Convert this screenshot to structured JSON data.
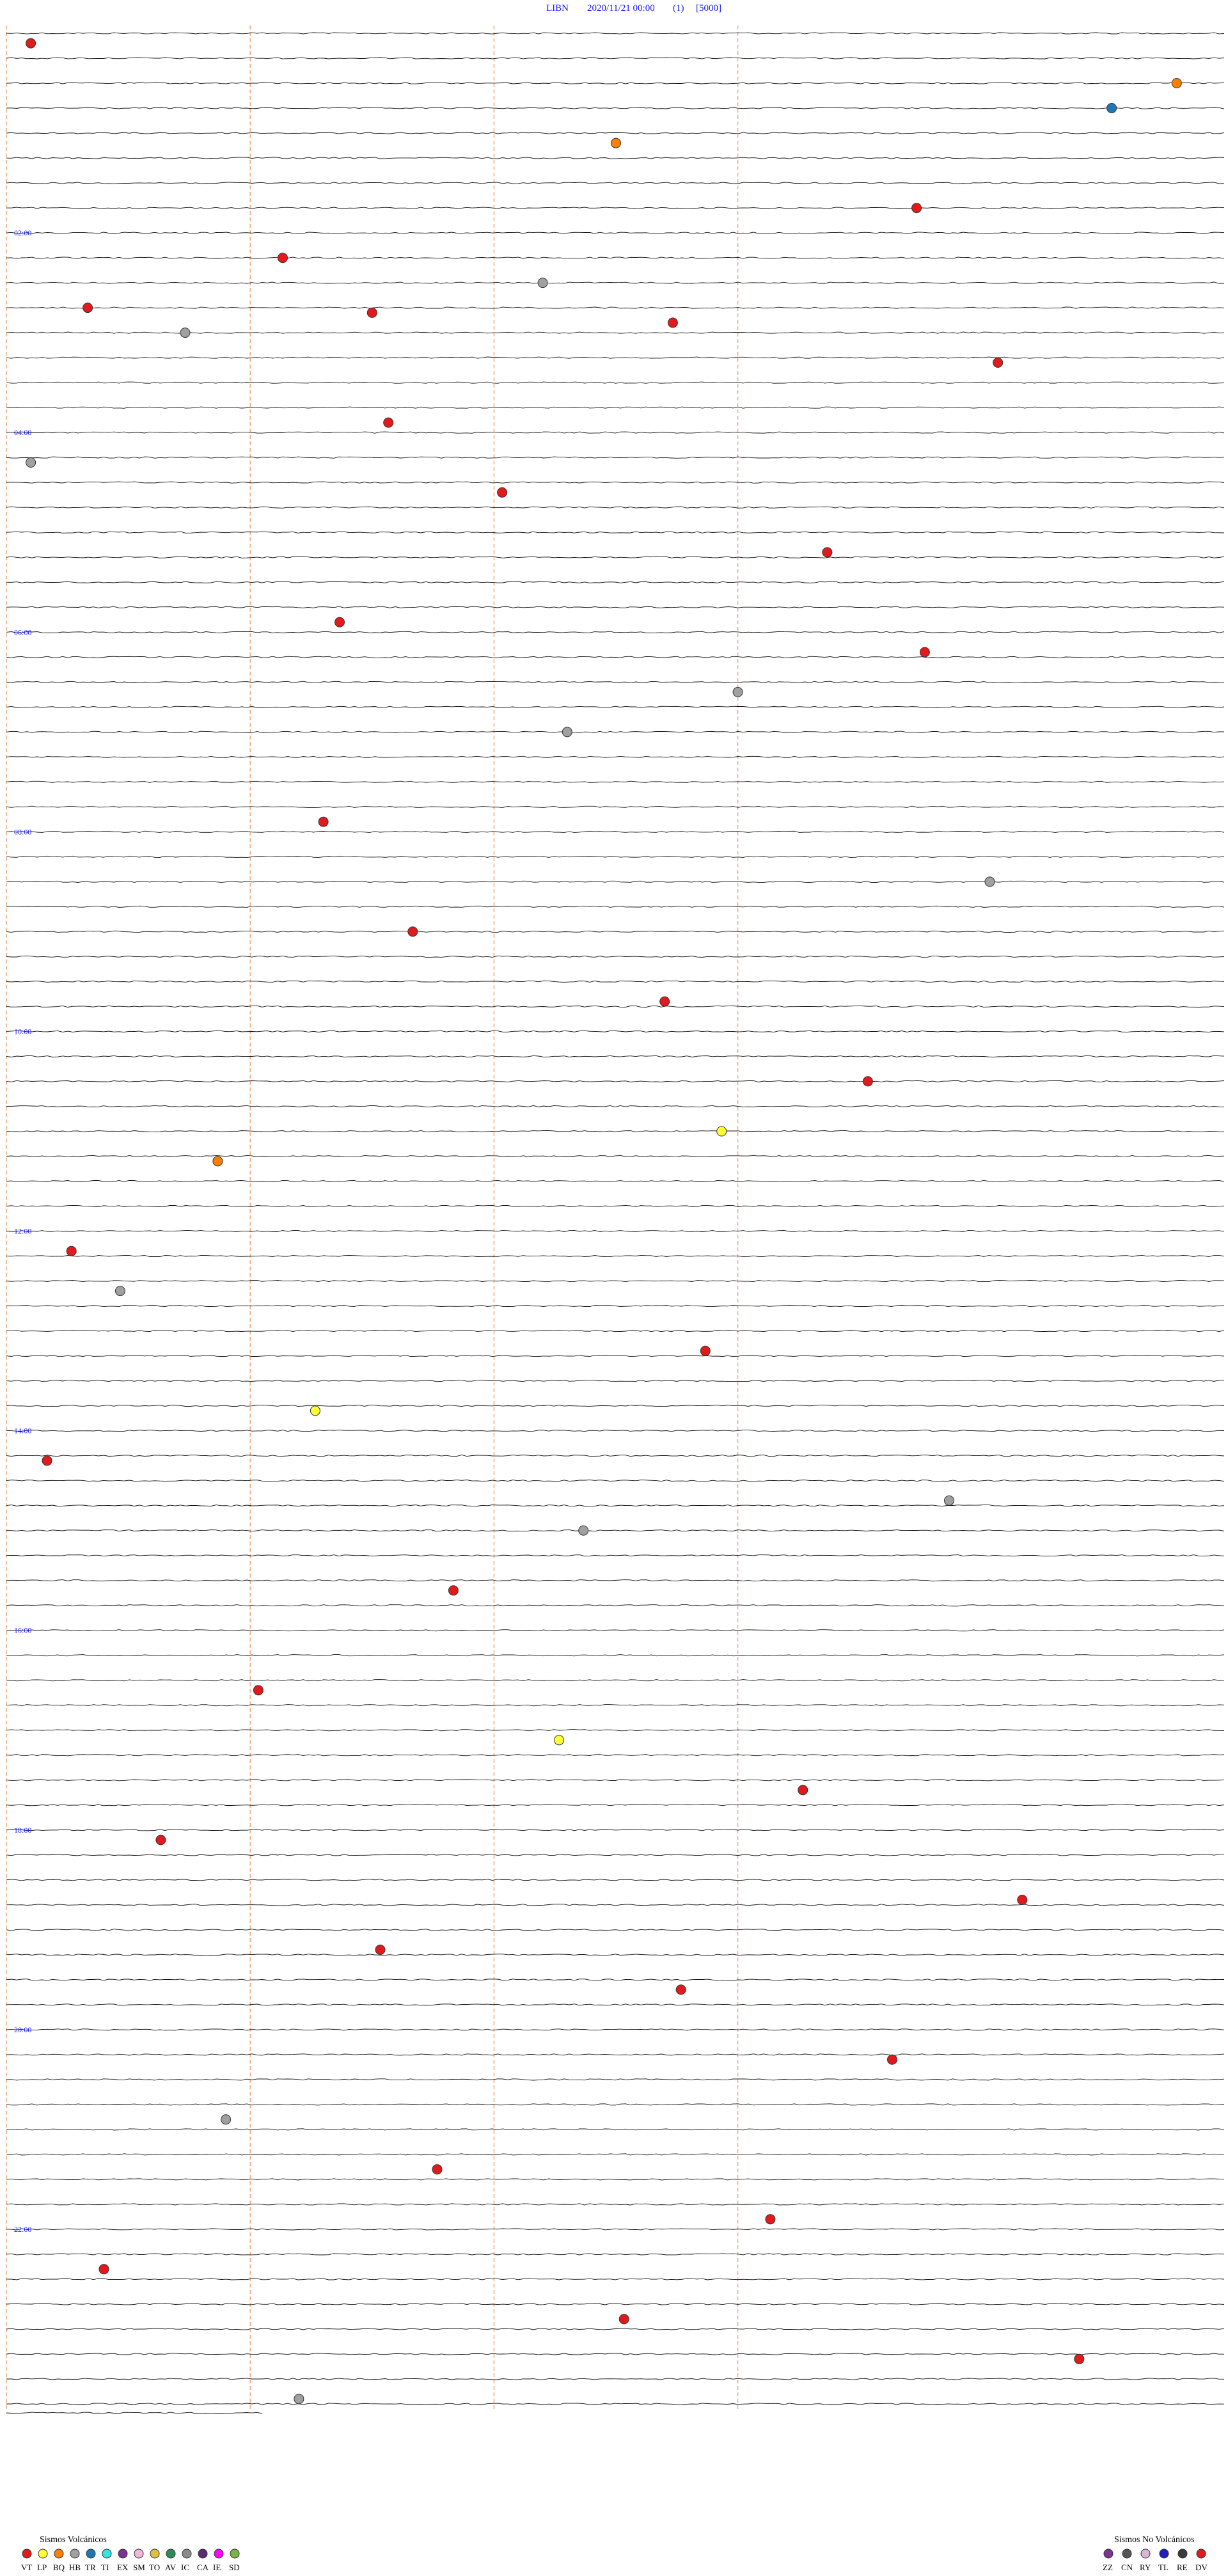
{
  "header": {
    "station": "LIBN",
    "datetime": "2020/11/21 00:00",
    "channel": "(1)",
    "scale": "[5000]"
  },
  "chart_data": {
    "type": "scatter",
    "title": "LIBN 2020/11/21 00:00 (1) [5000]",
    "trace_minutes": 15,
    "traces_total": 96,
    "hour_labels": [
      "02:00",
      "04:00",
      "06:00",
      "08:00",
      "10:00",
      "12:00",
      "14:00",
      "16:00",
      "18:00",
      "20:00",
      "22:00"
    ],
    "hour_label_hours": [
      2,
      4,
      6,
      8,
      10,
      12,
      14,
      16,
      18,
      20,
      22
    ],
    "grid_minutes": [
      0,
      3,
      6,
      9
    ],
    "events": [
      {
        "hour": 0.1,
        "minute": 0.3,
        "type": "VT"
      },
      {
        "hour": 0.5,
        "minute": 14.4,
        "type": "BQ"
      },
      {
        "hour": 0.75,
        "minute": 13.6,
        "type": "TR"
      },
      {
        "hour": 1.1,
        "minute": 7.5,
        "type": "BQ"
      },
      {
        "hour": 1.75,
        "minute": 11.2,
        "type": "VT"
      },
      {
        "hour": 2.25,
        "minute": 3.4,
        "type": "VT"
      },
      {
        "hour": 2.5,
        "minute": 6.6,
        "type": "HB"
      },
      {
        "hour": 2.75,
        "minute": 1.0,
        "type": "VT"
      },
      {
        "hour": 2.8,
        "minute": 4.5,
        "type": "VT"
      },
      {
        "hour": 2.9,
        "minute": 8.2,
        "type": "VT"
      },
      {
        "hour": 3.0,
        "minute": 2.2,
        "type": "HB"
      },
      {
        "hour": 3.3,
        "minute": 12.2,
        "type": "VT"
      },
      {
        "hour": 3.9,
        "minute": 4.7,
        "type": "VT"
      },
      {
        "hour": 4.3,
        "minute": 0.3,
        "type": "HB"
      },
      {
        "hour": 4.6,
        "minute": 6.1,
        "type": "VT"
      },
      {
        "hour": 5.2,
        "minute": 10.1,
        "type": "VT"
      },
      {
        "hour": 5.9,
        "minute": 4.1,
        "type": "VT"
      },
      {
        "hour": 6.2,
        "minute": 11.3,
        "type": "VT"
      },
      {
        "hour": 6.6,
        "minute": 9.0,
        "type": "HB"
      },
      {
        "hour": 7.0,
        "minute": 6.9,
        "type": "HB"
      },
      {
        "hour": 7.9,
        "minute": 3.9,
        "type": "VT"
      },
      {
        "hour": 8.5,
        "minute": 12.1,
        "type": "HB"
      },
      {
        "hour": 9.0,
        "minute": 5.0,
        "type": "VT"
      },
      {
        "hour": 9.7,
        "minute": 8.1,
        "type": "VT"
      },
      {
        "hour": 10.5,
        "minute": 10.6,
        "type": "VT"
      },
      {
        "hour": 11.0,
        "minute": 8.8,
        "type": "LP"
      },
      {
        "hour": 11.3,
        "minute": 2.6,
        "type": "BQ"
      },
      {
        "hour": 12.2,
        "minute": 0.8,
        "type": "VT"
      },
      {
        "hour": 12.6,
        "minute": 1.4,
        "type": "HB"
      },
      {
        "hour": 13.2,
        "minute": 8.6,
        "type": "VT"
      },
      {
        "hour": 13.8,
        "minute": 3.8,
        "type": "LP"
      },
      {
        "hour": 14.3,
        "minute": 0.5,
        "type": "VT"
      },
      {
        "hour": 14.7,
        "minute": 11.6,
        "type": "HB"
      },
      {
        "hour": 15.0,
        "minute": 7.1,
        "type": "HB"
      },
      {
        "hour": 15.6,
        "minute": 5.5,
        "type": "VT"
      },
      {
        "hour": 16.6,
        "minute": 3.1,
        "type": "VT"
      },
      {
        "hour": 17.1,
        "minute": 6.8,
        "type": "LP"
      },
      {
        "hour": 17.6,
        "minute": 9.8,
        "type": "VT"
      },
      {
        "hour": 18.1,
        "minute": 1.9,
        "type": "VT"
      },
      {
        "hour": 18.7,
        "minute": 12.5,
        "type": "VT"
      },
      {
        "hour": 19.2,
        "minute": 4.6,
        "type": "VT"
      },
      {
        "hour": 19.6,
        "minute": 8.3,
        "type": "VT"
      },
      {
        "hour": 20.3,
        "minute": 10.9,
        "type": "VT"
      },
      {
        "hour": 20.9,
        "minute": 2.7,
        "type": "HB"
      },
      {
        "hour": 21.4,
        "minute": 5.3,
        "type": "VT"
      },
      {
        "hour": 21.9,
        "minute": 9.4,
        "type": "VT"
      },
      {
        "hour": 22.4,
        "minute": 1.2,
        "type": "VT"
      },
      {
        "hour": 22.9,
        "minute": 7.6,
        "type": "VT"
      },
      {
        "hour": 23.3,
        "minute": 13.2,
        "type": "VT"
      },
      {
        "hour": 23.7,
        "minute": 3.6,
        "type": "HB"
      }
    ],
    "legend_volcanic": {
      "title": "Sismos Volcánicos",
      "items": [
        {
          "code": "VT",
          "color": "#e31a1c"
        },
        {
          "code": "LP",
          "color": "#ffff33"
        },
        {
          "code": "BQ",
          "color": "#ff7f00"
        },
        {
          "code": "HB",
          "color": "#a0a0a0"
        },
        {
          "code": "TR",
          "color": "#1f78b4"
        },
        {
          "code": "TI",
          "color": "#33e5e5"
        },
        {
          "code": "EX",
          "color": "#7b3294"
        },
        {
          "code": "SM",
          "color": "#f1b6da"
        },
        {
          "code": "TO",
          "color": "#e0c040"
        },
        {
          "code": "AV",
          "color": "#2e8b57"
        },
        {
          "code": "IC",
          "color": "#8c8c8c"
        },
        {
          "code": "CA",
          "color": "#5b2c6f"
        },
        {
          "code": "IE",
          "color": "#ff00ff"
        },
        {
          "code": "SD",
          "color": "#7cb342"
        }
      ]
    },
    "legend_nonvolcanic": {
      "title": "Sismos No Volcánicos",
      "items": [
        {
          "code": "ZZ",
          "color": "#7b3294"
        },
        {
          "code": "CN",
          "color": "#555555"
        },
        {
          "code": "RY",
          "color": "#d7b5d8"
        },
        {
          "code": "TL",
          "color": "#1f1fbf"
        },
        {
          "code": "RE",
          "color": "#3b3b3b"
        },
        {
          "code": "DV",
          "color": "#e31a1c"
        }
      ]
    }
  }
}
